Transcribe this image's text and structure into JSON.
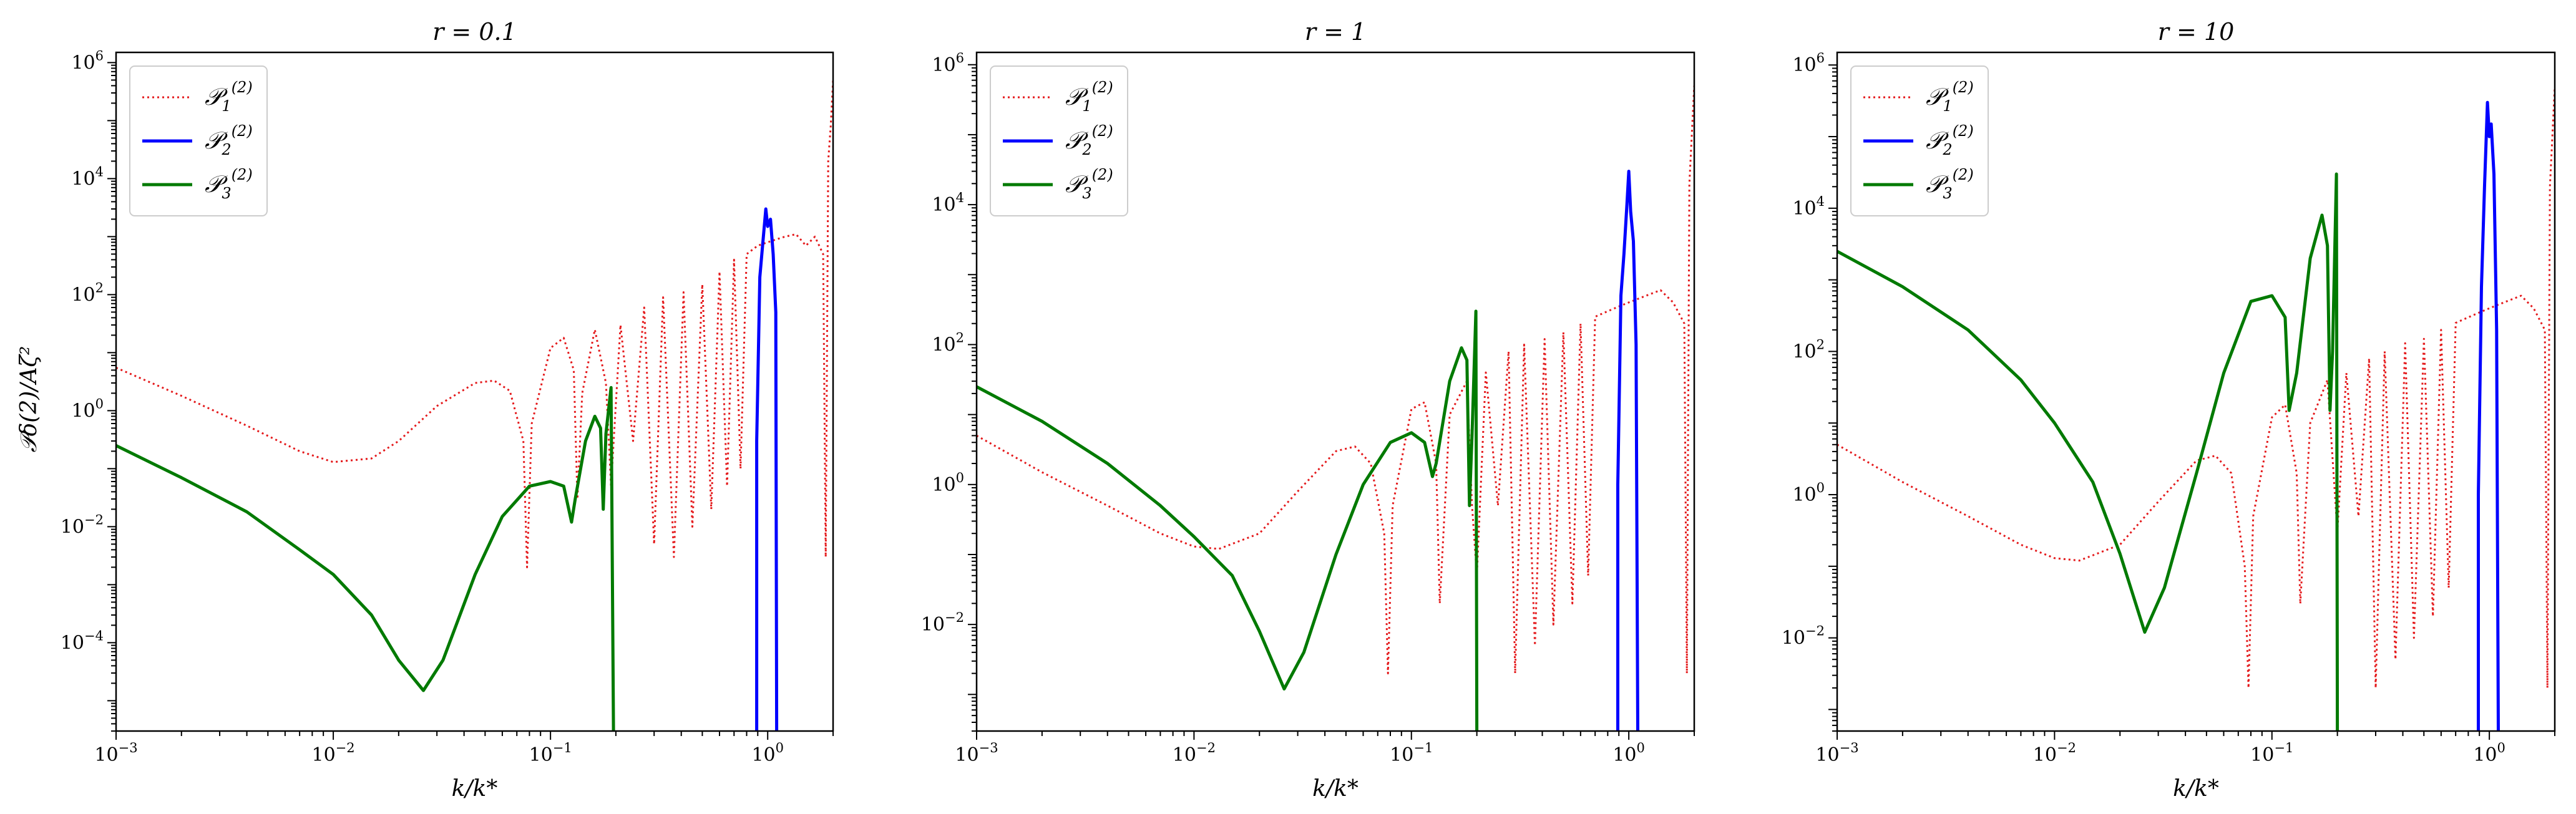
{
  "figure": {
    "ylabel": "𝒫δ(2)/Aζ²",
    "xlabel": "k/k*"
  },
  "legend": [
    {
      "name": "𝒫",
      "sub": "1",
      "sup": "(2)",
      "color": "#e41a1c",
      "style": "dotted"
    },
    {
      "name": "𝒫",
      "sub": "2",
      "sup": "(2)",
      "color": "#0000ff",
      "style": "solid"
    },
    {
      "name": "𝒫",
      "sub": "3",
      "sup": "(2)",
      "color": "#007a00",
      "style": "solid"
    }
  ],
  "chart_data": [
    {
      "type": "line",
      "title": "r = 0.1",
      "xlabel": "k/k*",
      "ylabel": "𝒫δ(2)/Aζ²",
      "xscale": "log",
      "yscale": "log",
      "xlim": [
        0.001,
        2
      ],
      "ylim": [
        3e-06,
        1500000.0
      ],
      "xticks": [
        "10−3",
        "10−2",
        "10−1",
        "100"
      ],
      "yticks": [
        "10−4",
        "10−2",
        "100",
        "102",
        "104",
        "106"
      ],
      "legend_position": "upper-left",
      "series": [
        {
          "name": "𝒫1(2)",
          "points": [
            [
              0.001,
              5.5
            ],
            [
              0.002,
              1.8
            ],
            [
              0.004,
              0.55
            ],
            [
              0.007,
              0.2
            ],
            [
              0.01,
              0.13
            ],
            [
              0.015,
              0.15
            ],
            [
              0.02,
              0.3
            ],
            [
              0.03,
              1.2
            ],
            [
              0.045,
              3
            ],
            [
              0.055,
              3.3
            ],
            [
              0.065,
              2.2
            ],
            [
              0.075,
              0.3
            ],
            [
              0.078,
              0.002
            ],
            [
              0.082,
              0.6
            ],
            [
              0.1,
              12
            ],
            [
              0.115,
              18
            ],
            [
              0.128,
              5
            ],
            [
              0.133,
              0.03
            ],
            [
              0.14,
              2
            ],
            [
              0.16,
              25
            ],
            [
              0.18,
              3
            ],
            [
              0.19,
              0.05
            ],
            [
              0.21,
              30
            ],
            [
              0.24,
              0.3
            ],
            [
              0.27,
              60
            ],
            [
              0.3,
              0.005
            ],
            [
              0.33,
              90
            ],
            [
              0.37,
              0.003
            ],
            [
              0.41,
              110
            ],
            [
              0.45,
              0.01
            ],
            [
              0.5,
              150
            ],
            [
              0.55,
              0.02
            ],
            [
              0.6,
              250
            ],
            [
              0.65,
              0.05
            ],
            [
              0.7,
              400
            ],
            [
              0.75,
              0.1
            ],
            [
              0.8,
              500
            ],
            [
              0.9,
              700
            ],
            [
              1.0,
              800
            ],
            [
              1.1,
              900
            ],
            [
              1.2,
              1000
            ],
            [
              1.35,
              1100
            ],
            [
              1.5,
              700
            ],
            [
              1.65,
              1000
            ],
            [
              1.8,
              500
            ],
            [
              1.85,
              0.003
            ],
            [
              1.9,
              20000
            ],
            [
              1.95,
              80000
            ],
            [
              2.0,
              500000
            ]
          ]
        },
        {
          "name": "𝒫2(2)",
          "points": [
            [
              0.89,
              3e-06
            ],
            [
              0.89,
              0.3
            ],
            [
              0.92,
              200
            ],
            [
              0.95,
              800
            ],
            [
              0.98,
              3000
            ],
            [
              1.0,
              1500
            ],
            [
              1.03,
              2000
            ],
            [
              1.06,
              500
            ],
            [
              1.09,
              50
            ],
            [
              1.1,
              3e-06
            ]
          ]
        },
        {
          "name": "𝒫3(2)",
          "points": [
            [
              0.001,
              0.25
            ],
            [
              0.002,
              0.07
            ],
            [
              0.004,
              0.018
            ],
            [
              0.007,
              0.004
            ],
            [
              0.01,
              0.0015
            ],
            [
              0.015,
              0.0003
            ],
            [
              0.02,
              5e-05
            ],
            [
              0.026,
              1.5e-05
            ],
            [
              0.032,
              5e-05
            ],
            [
              0.045,
              0.0015
            ],
            [
              0.06,
              0.015
            ],
            [
              0.08,
              0.05
            ],
            [
              0.1,
              0.06
            ],
            [
              0.115,
              0.05
            ],
            [
              0.125,
              0.012
            ],
            [
              0.13,
              0.03
            ],
            [
              0.145,
              0.3
            ],
            [
              0.16,
              0.8
            ],
            [
              0.17,
              0.5
            ],
            [
              0.175,
              0.02
            ],
            [
              0.18,
              0.4
            ],
            [
              0.19,
              2.5
            ],
            [
              0.195,
              3e-06
            ]
          ]
        }
      ]
    },
    {
      "type": "line",
      "title": "r = 1",
      "xlabel": "k/k*",
      "ylabel": "",
      "xscale": "log",
      "yscale": "log",
      "xlim": [
        0.001,
        2
      ],
      "ylim": [
        0.0003,
        1500000.0
      ],
      "xticks": [
        "10−3",
        "10−2",
        "10−1",
        "100"
      ],
      "yticks": [
        "10−2",
        "100",
        "102",
        "104",
        "106"
      ],
      "legend_position": "upper-left",
      "series": [
        {
          "name": "𝒫1(2)",
          "points": [
            [
              0.001,
              5
            ],
            [
              0.002,
              1.5
            ],
            [
              0.004,
              0.5
            ],
            [
              0.007,
              0.2
            ],
            [
              0.01,
              0.13
            ],
            [
              0.013,
              0.12
            ],
            [
              0.02,
              0.2
            ],
            [
              0.03,
              0.8
            ],
            [
              0.045,
              3
            ],
            [
              0.055,
              3.5
            ],
            [
              0.065,
              2
            ],
            [
              0.075,
              0.2
            ],
            [
              0.078,
              0.002
            ],
            [
              0.082,
              0.5
            ],
            [
              0.1,
              12
            ],
            [
              0.115,
              15
            ],
            [
              0.13,
              2
            ],
            [
              0.135,
              0.02
            ],
            [
              0.15,
              10
            ],
            [
              0.18,
              30
            ],
            [
              0.19,
              0.5
            ],
            [
              0.2,
              0.05
            ],
            [
              0.22,
              40
            ],
            [
              0.25,
              0.5
            ],
            [
              0.28,
              80
            ],
            [
              0.3,
              0.002
            ],
            [
              0.33,
              100
            ],
            [
              0.37,
              0.005
            ],
            [
              0.41,
              120
            ],
            [
              0.45,
              0.01
            ],
            [
              0.5,
              150
            ],
            [
              0.55,
              0.02
            ],
            [
              0.6,
              200
            ],
            [
              0.65,
              0.05
            ],
            [
              0.7,
              250
            ],
            [
              0.8,
              300
            ],
            [
              0.9,
              350
            ],
            [
              1.0,
              400
            ],
            [
              1.2,
              500
            ],
            [
              1.4,
              600
            ],
            [
              1.6,
              400
            ],
            [
              1.8,
              200
            ],
            [
              1.85,
              0.002
            ],
            [
              1.9,
              20000
            ],
            [
              2.0,
              500000
            ]
          ]
        },
        {
          "name": "𝒫2(2)",
          "points": [
            [
              0.89,
              0.0003
            ],
            [
              0.89,
              1
            ],
            [
              0.92,
              500
            ],
            [
              0.95,
              2000
            ],
            [
              0.98,
              10000
            ],
            [
              1.0,
              30000
            ],
            [
              1.02,
              8000
            ],
            [
              1.05,
              3000
            ],
            [
              1.08,
              100
            ],
            [
              1.1,
              0.0003
            ]
          ]
        },
        {
          "name": "𝒫3(2)",
          "points": [
            [
              0.001,
              25
            ],
            [
              0.002,
              8
            ],
            [
              0.004,
              2
            ],
            [
              0.007,
              0.5
            ],
            [
              0.01,
              0.18
            ],
            [
              0.015,
              0.05
            ],
            [
              0.02,
              0.008
            ],
            [
              0.026,
              0.0012
            ],
            [
              0.032,
              0.004
            ],
            [
              0.045,
              0.1
            ],
            [
              0.06,
              1
            ],
            [
              0.08,
              4
            ],
            [
              0.1,
              5.5
            ],
            [
              0.115,
              4
            ],
            [
              0.125,
              1.3
            ],
            [
              0.13,
              2
            ],
            [
              0.15,
              30
            ],
            [
              0.17,
              90
            ],
            [
              0.18,
              60
            ],
            [
              0.185,
              0.5
            ],
            [
              0.19,
              5
            ],
            [
              0.198,
              300
            ],
            [
              0.2,
              0.0003
            ]
          ]
        }
      ]
    },
    {
      "type": "line",
      "title": "r = 10",
      "xlabel": "k/k*",
      "ylabel": "",
      "xscale": "log",
      "yscale": "log",
      "xlim": [
        0.001,
        2
      ],
      "ylim": [
        0.0005,
        1500000.0
      ],
      "xticks": [
        "10−3",
        "10−2",
        "10−1",
        "100"
      ],
      "yticks": [
        "10−2",
        "100",
        "102",
        "104",
        "106"
      ],
      "legend_position": "upper-left",
      "series": [
        {
          "name": "𝒫1(2)",
          "points": [
            [
              0.001,
              5
            ],
            [
              0.002,
              1.5
            ],
            [
              0.004,
              0.5
            ],
            [
              0.007,
              0.2
            ],
            [
              0.01,
              0.13
            ],
            [
              0.013,
              0.12
            ],
            [
              0.02,
              0.2
            ],
            [
              0.03,
              0.8
            ],
            [
              0.045,
              3
            ],
            [
              0.055,
              3.5
            ],
            [
              0.065,
              2
            ],
            [
              0.075,
              0.1
            ],
            [
              0.078,
              0.002
            ],
            [
              0.082,
              0.5
            ],
            [
              0.1,
              12
            ],
            [
              0.115,
              18
            ],
            [
              0.13,
              2
            ],
            [
              0.135,
              0.03
            ],
            [
              0.15,
              10
            ],
            [
              0.18,
              40
            ],
            [
              0.2,
              0.3
            ],
            [
              0.22,
              50
            ],
            [
              0.25,
              0.5
            ],
            [
              0.28,
              80
            ],
            [
              0.3,
              0.002
            ],
            [
              0.33,
              100
            ],
            [
              0.37,
              0.005
            ],
            [
              0.41,
              130
            ],
            [
              0.45,
              0.01
            ],
            [
              0.5,
              150
            ],
            [
              0.55,
              0.02
            ],
            [
              0.6,
              200
            ],
            [
              0.65,
              0.05
            ],
            [
              0.7,
              250
            ],
            [
              0.8,
              300
            ],
            [
              0.9,
              350
            ],
            [
              1.0,
              400
            ],
            [
              1.2,
              500
            ],
            [
              1.4,
              600
            ],
            [
              1.6,
              400
            ],
            [
              1.8,
              200
            ],
            [
              1.85,
              0.002
            ],
            [
              1.9,
              20000
            ],
            [
              2.0,
              500000
            ]
          ]
        },
        {
          "name": "𝒫2(2)",
          "points": [
            [
              0.89,
              0.0005
            ],
            [
              0.89,
              1
            ],
            [
              0.92,
              800
            ],
            [
              0.95,
              20000
            ],
            [
              0.98,
              300000
            ],
            [
              1.0,
              100000
            ],
            [
              1.02,
              150000
            ],
            [
              1.05,
              30000
            ],
            [
              1.08,
              200
            ],
            [
              1.1,
              0.0005
            ]
          ]
        },
        {
          "name": "𝒫3(2)",
          "points": [
            [
              0.001,
              2500
            ],
            [
              0.002,
              800
            ],
            [
              0.004,
              200
            ],
            [
              0.007,
              40
            ],
            [
              0.01,
              10
            ],
            [
              0.015,
              1.5
            ],
            [
              0.02,
              0.15
            ],
            [
              0.026,
              0.012
            ],
            [
              0.032,
              0.05
            ],
            [
              0.045,
              2
            ],
            [
              0.06,
              50
            ],
            [
              0.08,
              500
            ],
            [
              0.1,
              600
            ],
            [
              0.115,
              300
            ],
            [
              0.12,
              15
            ],
            [
              0.13,
              50
            ],
            [
              0.15,
              2000
            ],
            [
              0.17,
              8000
            ],
            [
              0.18,
              3000
            ],
            [
              0.185,
              15
            ],
            [
              0.19,
              100
            ],
            [
              0.198,
              30000
            ],
            [
              0.2,
              0.0005
            ]
          ]
        }
      ]
    }
  ]
}
